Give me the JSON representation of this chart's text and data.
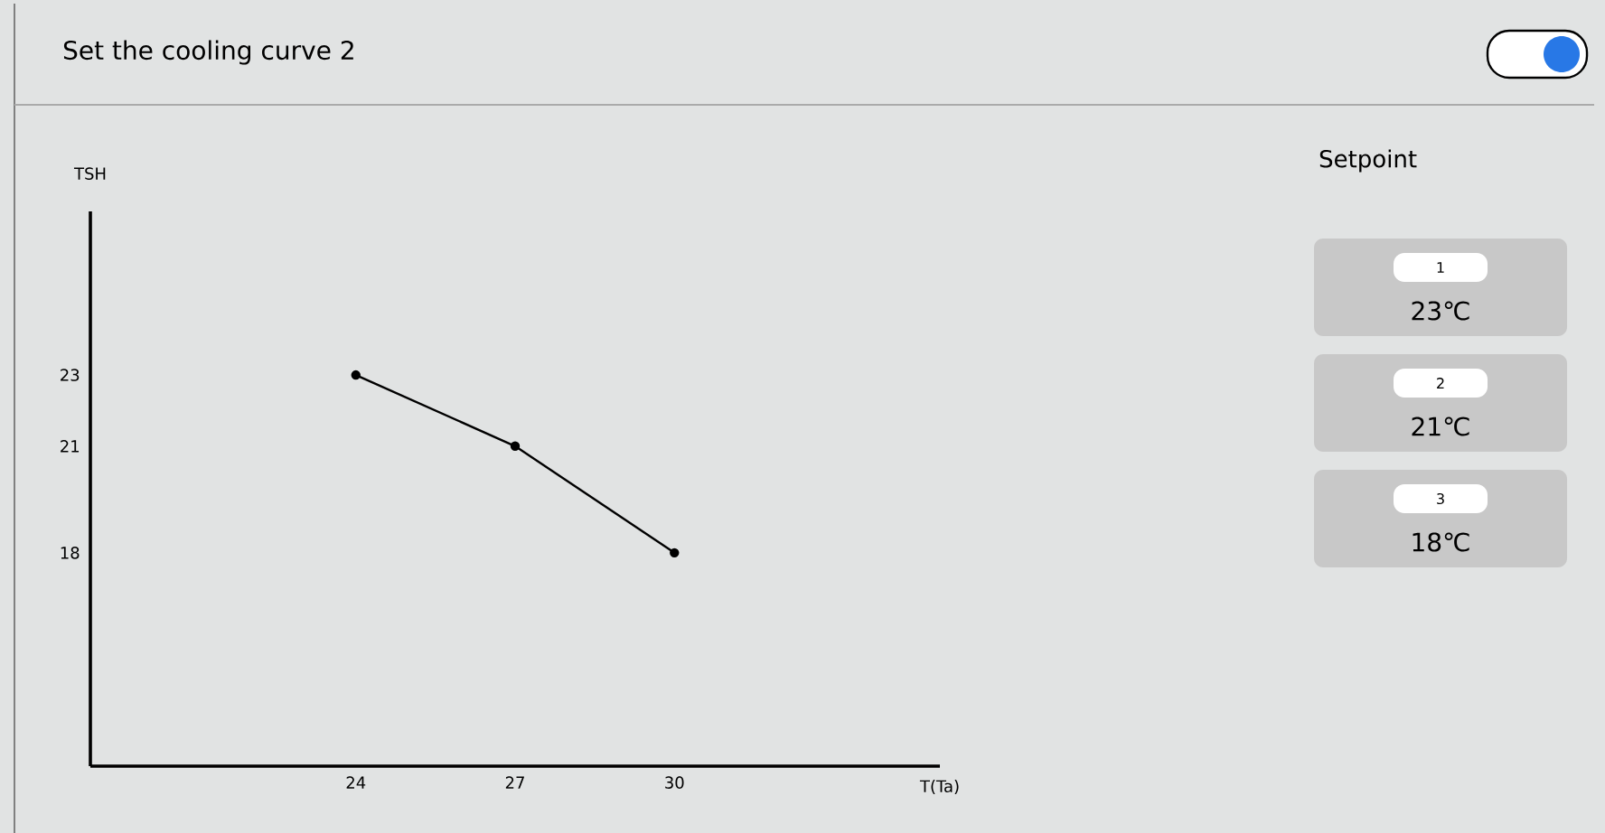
{
  "chart_data": {
    "type": "line",
    "title": "Set the cooling curve 2",
    "xlabel": "T(Ta)",
    "ylabel": "TSH",
    "x": [
      24,
      27,
      30
    ],
    "series": [
      {
        "color": "#000000",
        "values": [
          23,
          21,
          18
        ]
      }
    ],
    "xlim": [
      19,
      35
    ],
    "ylim": [
      12,
      27.6
    ],
    "xticks": [
      24,
      27,
      30
    ],
    "yticks": [
      18,
      21,
      23
    ],
    "grid": false,
    "marker": "circle",
    "line_style": "solid",
    "annotations": [
      "Setpoint",
      "1",
      "23℃",
      "2",
      "21℃",
      "3",
      "18℃"
    ]
  }
}
